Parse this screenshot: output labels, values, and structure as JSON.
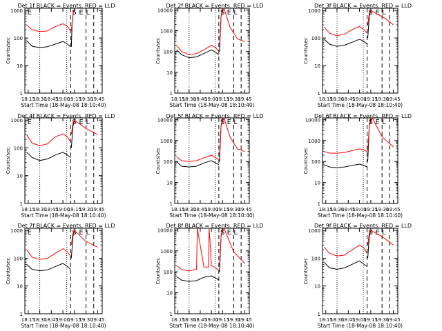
{
  "chart_data": [
    {
      "type": "line",
      "title": "Det 1f BLACK = Events, RED = LLD",
      "xlabel": "Start Time (18-May-08 18:10:40)",
      "ylabel": "Counts/sec",
      "ylim": [
        1,
        1200
      ],
      "xlim": [
        "18:10:40",
        "19:51"
      ],
      "y_scale": "log",
      "x_ticks": [
        "18:15",
        "18:30",
        "18:45",
        "19:00",
        "19:15",
        "19:30",
        "19:45"
      ],
      "y_ticks": [
        "1",
        "10",
        "100",
        "1000"
      ],
      "flags": [
        "E",
        "S",
        "E",
        "L"
      ],
      "series": [
        {
          "color": "#000000",
          "x": [
            "18:13",
            "18:20",
            "18:30",
            "18:40",
            "18:50",
            "19:00",
            "19:06",
            "19:10"
          ],
          "values": [
            80,
            50,
            45,
            48,
            60,
            75,
            60,
            48
          ]
        },
        {
          "color": "#ff0000",
          "x": [
            "18:13",
            "18:20",
            "18:30",
            "18:40",
            "18:50",
            "19:00",
            "19:06",
            "19:10"
          ],
          "values": [
            300,
            200,
            170,
            180,
            260,
            330,
            260,
            180
          ]
        }
      ],
      "post_series": [
        {
          "color": "#000000",
          "x": [
            "19:11",
            "19:12",
            "19:14",
            "19:15"
          ],
          "values": [
            48,
            400,
            1000,
            1000
          ]
        },
        {
          "color": "#ff0000",
          "x": [
            "19:11",
            "19:12",
            "19:14",
            "19:15"
          ],
          "values": [
            180,
            400,
            1000,
            1000
          ]
        }
      ]
    },
    {
      "type": "line",
      "title": "Det 2f BLACK = Events, RED = LLD",
      "xlabel": "Start Time (18-May-08 18:10:40)",
      "ylabel": "Counts/sec",
      "ylim": [
        1,
        12000
      ],
      "xlim": [
        "18:10:40",
        "19:51"
      ],
      "y_scale": "log",
      "x_ticks": [
        "18:15",
        "18:30",
        "18:45",
        "19:00",
        "19:15",
        "19:30",
        "19:45"
      ],
      "y_ticks": [
        "1",
        "10",
        "100",
        "1000",
        "10000"
      ],
      "flags": [
        "S",
        "E",
        "L"
      ],
      "series": [
        {
          "color": "#000000",
          "x": [
            "18:13",
            "18:20",
            "18:30",
            "18:40",
            "18:50",
            "19:00",
            "19:06",
            "19:10"
          ],
          "values": [
            120,
            70,
            50,
            55,
            80,
            120,
            90,
            70
          ]
        },
        {
          "color": "#ff0000",
          "x": [
            "18:13",
            "18:20",
            "18:30",
            "18:40",
            "18:50",
            "19:00",
            "19:06",
            "19:10"
          ],
          "values": [
            200,
            100,
            70,
            80,
            120,
            200,
            150,
            100
          ]
        }
      ],
      "post_series": [
        {
          "color": "#000000",
          "x": [
            "19:11",
            "19:13",
            "19:15"
          ],
          "values": [
            100,
            5000,
            10000
          ]
        },
        {
          "color": "#ff0000",
          "x": [
            "19:11",
            "19:13",
            "19:17",
            "19:25",
            "19:35",
            "19:45"
          ],
          "values": [
            200,
            5000,
            12000,
            1500,
            400,
            300
          ]
        }
      ]
    },
    {
      "type": "line",
      "title": "Det 3f BLACK = Events, RED = LLD",
      "xlabel": "Start Time (18-May-08 18:10:40)",
      "ylabel": "Counts/sec",
      "ylim": [
        1,
        1200
      ],
      "xlim": [
        "18:10:40",
        "19:51"
      ],
      "y_scale": "log",
      "x_ticks": [
        "18:15",
        "18:30",
        "18:45",
        "19:00",
        "19:15",
        "19:30",
        "19:45"
      ],
      "y_ticks": [
        "1",
        "10",
        "100",
        "1000"
      ],
      "flags": [
        "S",
        "E",
        "L"
      ],
      "series": [
        {
          "color": "#000000",
          "x": [
            "18:13",
            "18:20",
            "18:30",
            "18:40",
            "18:50",
            "19:00",
            "19:06",
            "19:10"
          ],
          "values": [
            90,
            60,
            50,
            55,
            70,
            90,
            75,
            60
          ]
        },
        {
          "color": "#ff0000",
          "x": [
            "18:13",
            "18:20",
            "18:30",
            "18:40",
            "18:50",
            "19:00",
            "19:06",
            "19:10"
          ],
          "values": [
            250,
            150,
            120,
            140,
            200,
            260,
            200,
            150
          ]
        }
      ],
      "post_series": [
        {
          "color": "#000000",
          "x": [
            "19:11",
            "19:13",
            "19:15"
          ],
          "values": [
            100,
            600,
            1000
          ]
        },
        {
          "color": "#ff0000",
          "x": [
            "19:11",
            "19:13",
            "19:15",
            "19:25",
            "19:35",
            "19:45"
          ],
          "values": [
            300,
            800,
            1000,
            700,
            500,
            300
          ]
        }
      ]
    },
    {
      "type": "line",
      "title": "Det 4f BLACK = Events, RED = LLD",
      "xlabel": "Start Time (18-May-08 18:10:40)",
      "ylabel": "Counts/sec",
      "ylim": [
        1,
        1200
      ],
      "xlim": [
        "18:10:40",
        "19:51"
      ],
      "y_scale": "log",
      "x_ticks": [
        "18:15",
        "18:30",
        "18:45",
        "19:00",
        "19:15",
        "19:30",
        "19:45"
      ],
      "y_ticks": [
        "1",
        "10",
        "100",
        "1000"
      ],
      "flags": [
        "E",
        "S",
        "E",
        "L"
      ],
      "series": [
        {
          "color": "#000000",
          "x": [
            "18:13",
            "18:20",
            "18:30",
            "18:40",
            "18:50",
            "19:00",
            "19:06",
            "19:10"
          ],
          "values": [
            70,
            45,
            35,
            40,
            55,
            70,
            55,
            45
          ]
        },
        {
          "color": "#ff0000",
          "x": [
            "18:13",
            "18:20",
            "18:30",
            "18:40",
            "18:50",
            "19:00",
            "19:06",
            "19:10"
          ],
          "values": [
            300,
            150,
            120,
            140,
            250,
            320,
            250,
            160
          ]
        }
      ],
      "post_series": [
        {
          "color": "#000000",
          "x": [
            "19:11",
            "19:13",
            "19:15"
          ],
          "values": [
            100,
            600,
            1000
          ]
        },
        {
          "color": "#ff0000",
          "x": [
            "19:11",
            "19:13",
            "19:15",
            "19:30",
            "19:45"
          ],
          "values": [
            300,
            800,
            1000,
            500,
            300
          ]
        }
      ]
    },
    {
      "type": "line",
      "title": "Det 5f BLACK = Events, RED = LLD",
      "xlabel": "Start Time (18-May-08 18:10:40)",
      "ylabel": "Counts/sec",
      "ylim": [
        1,
        12000
      ],
      "xlim": [
        "18:10:40",
        "19:51"
      ],
      "y_scale": "log",
      "x_ticks": [
        "18:15",
        "18:30",
        "18:45",
        "19:00",
        "19:15",
        "19:30",
        "19:45"
      ],
      "y_ticks": [
        "1",
        "10",
        "100",
        "1000",
        "10000"
      ],
      "flags": [
        "S",
        "E",
        "L"
      ],
      "series": [
        {
          "color": "#000000",
          "x": [
            "18:13",
            "18:20",
            "18:30",
            "18:40",
            "18:50",
            "19:00",
            "19:06",
            "19:10"
          ],
          "values": [
            100,
            60,
            55,
            60,
            85,
            110,
            85,
            70
          ]
        },
        {
          "color": "#ff0000",
          "x": [
            "18:13",
            "18:20",
            "18:30",
            "18:40",
            "18:50",
            "19:00",
            "19:06",
            "19:10"
          ],
          "values": [
            170,
            110,
            100,
            110,
            150,
            200,
            150,
            120
          ]
        }
      ],
      "post_series": [
        {
          "color": "#000000",
          "x": [
            "19:11",
            "19:13",
            "19:15"
          ],
          "values": [
            100,
            5000,
            10000
          ]
        },
        {
          "color": "#ff0000",
          "x": [
            "19:11",
            "19:13",
            "19:17",
            "19:25",
            "19:35",
            "19:45"
          ],
          "values": [
            200,
            5000,
            12000,
            1500,
            400,
            300
          ]
        }
      ]
    },
    {
      "type": "line",
      "title": "Det 6f BLACK = Events, RED = LLD",
      "xlabel": "Start Time (18-May-08 18:10:40)",
      "ylabel": "Counts/sec",
      "ylim": [
        1,
        12000
      ],
      "xlim": [
        "18:10:40",
        "19:51"
      ],
      "y_scale": "log",
      "x_ticks": [
        "18:15",
        "18:30",
        "18:45",
        "19:00",
        "19:15",
        "19:30",
        "19:45"
      ],
      "y_ticks": [
        "1",
        "10",
        "100",
        "1000",
        "10000"
      ],
      "flags": [
        "S",
        "E",
        "L"
      ],
      "series": [
        {
          "color": "#000000",
          "x": [
            "18:13",
            "18:20",
            "18:30",
            "18:40",
            "18:50",
            "19:00",
            "19:06",
            "19:10"
          ],
          "values": [
            70,
            55,
            50,
            55,
            65,
            75,
            65,
            55
          ]
        },
        {
          "color": "#ff0000",
          "x": [
            "18:13",
            "18:20",
            "18:30",
            "18:40",
            "18:50",
            "19:00",
            "19:06",
            "19:10"
          ],
          "values": [
            300,
            250,
            250,
            270,
            330,
            400,
            350,
            300
          ]
        }
      ],
      "post_series": [
        {
          "color": "#000000",
          "x": [
            "19:11",
            "19:13",
            "19:15"
          ],
          "values": [
            100,
            5000,
            10000
          ]
        },
        {
          "color": "#ff0000",
          "x": [
            "19:11",
            "19:13",
            "19:17",
            "19:30",
            "19:45"
          ],
          "values": [
            300,
            5000,
            12000,
            1500,
            500
          ]
        }
      ]
    },
    {
      "type": "line",
      "title": "Det 7f BLACK = Events, RED = LLD",
      "xlabel": "Start Time (18-May-08 18:10:40)",
      "ylabel": "Counts/sec",
      "ylim": [
        1,
        1200
      ],
      "xlim": [
        "18:10:40",
        "19:51"
      ],
      "y_scale": "log",
      "x_ticks": [
        "18:15",
        "18:30",
        "18:45",
        "19:00",
        "19:15",
        "19:30",
        "19:45"
      ],
      "y_ticks": [
        "1",
        "10",
        "100",
        "1000"
      ],
      "flags": [
        "E",
        "S",
        "E",
        "L"
      ],
      "series": [
        {
          "color": "#000000",
          "x": [
            "18:13",
            "18:20",
            "18:30",
            "18:40",
            "18:50",
            "19:00",
            "19:06",
            "19:10"
          ],
          "values": [
            60,
            40,
            35,
            38,
            50,
            65,
            50,
            40
          ]
        },
        {
          "color": "#ff0000",
          "x": [
            "18:13",
            "18:20",
            "18:30",
            "18:40",
            "18:50",
            "19:00",
            "19:06",
            "19:10"
          ],
          "values": [
            200,
            110,
            90,
            100,
            150,
            220,
            170,
            120
          ]
        }
      ],
      "post_series": [
        {
          "color": "#000000",
          "x": [
            "19:11",
            "19:13",
            "19:15"
          ],
          "values": [
            100,
            600,
            1000
          ]
        },
        {
          "color": "#ff0000",
          "x": [
            "19:11",
            "19:13",
            "19:15",
            "19:30",
            "19:45"
          ],
          "values": [
            300,
            800,
            1000,
            400,
            250
          ]
        }
      ]
    },
    {
      "type": "line",
      "title": "Det 8f BLACK = Events, RED = LLD",
      "xlabel": "Start Time (18-May-08 18:10:40)",
      "ylabel": "Counts/sec",
      "ylim": [
        1,
        12000
      ],
      "xlim": [
        "18:10:40",
        "19:51"
      ],
      "y_scale": "log",
      "x_ticks": [
        "18:15",
        "18:30",
        "18:45",
        "19:00",
        "19:15",
        "19:30",
        "19:45"
      ],
      "y_ticks": [
        "1",
        "10",
        "100",
        "1000",
        "10000"
      ],
      "flags": [
        "S",
        "E",
        "L"
      ],
      "series": [
        {
          "color": "#000000",
          "x": [
            "18:13",
            "18:20",
            "18:30",
            "18:40",
            "18:50",
            "18:55",
            "18:56",
            "19:00",
            "19:06",
            "19:10"
          ],
          "values": [
            60,
            40,
            35,
            38,
            55,
            60,
            60,
            65,
            50,
            40
          ]
        },
        {
          "color": "#ff0000",
          "x": [
            "18:13",
            "18:20",
            "18:30",
            "18:38",
            "18:40",
            "18:41",
            "18:50",
            "18:56",
            "18:57",
            "19:00",
            "19:06",
            "19:10"
          ],
          "values": [
            200,
            130,
            110,
            130,
            130,
            12000,
            170,
            170,
            12000,
            200,
            150,
            120
          ]
        }
      ],
      "post_series": [
        {
          "color": "#000000",
          "x": [
            "19:11",
            "19:13",
            "19:15"
          ],
          "values": [
            100,
            5000,
            10000
          ]
        },
        {
          "color": "#ff0000",
          "x": [
            "19:11",
            "19:13",
            "19:17",
            "19:30",
            "19:45"
          ],
          "values": [
            200,
            5000,
            12000,
            900,
            250
          ]
        }
      ]
    },
    {
      "type": "line",
      "title": "Det 9f BLACK = Events, RED = LLD",
      "xlabel": "Start Time (18-May-08 18:10:40)",
      "ylabel": "Counts/sec",
      "ylim": [
        1,
        1200
      ],
      "xlim": [
        "18:10:40",
        "19:51"
      ],
      "y_scale": "log",
      "x_ticks": [
        "18:15",
        "18:30",
        "18:45",
        "19:00",
        "19:15",
        "19:30",
        "19:45"
      ],
      "y_ticks": [
        "1",
        "10",
        "100",
        "1000"
      ],
      "flags": [
        "S",
        "E",
        "L"
      ],
      "series": [
        {
          "color": "#000000",
          "x": [
            "18:13",
            "18:20",
            "18:30",
            "18:40",
            "18:50",
            "19:00",
            "19:06",
            "19:10"
          ],
          "values": [
            70,
            45,
            40,
            45,
            60,
            80,
            60,
            50
          ]
        },
        {
          "color": "#ff0000",
          "x": [
            "18:13",
            "18:20",
            "18:30",
            "18:40",
            "18:50",
            "19:00",
            "19:06",
            "19:10"
          ],
          "values": [
            250,
            150,
            120,
            130,
            200,
            300,
            230,
            150
          ]
        }
      ],
      "post_series": [
        {
          "color": "#000000",
          "x": [
            "19:11",
            "19:13",
            "19:15"
          ],
          "values": [
            100,
            600,
            1000
          ]
        },
        {
          "color": "#ff0000",
          "x": [
            "19:11",
            "19:13",
            "19:15",
            "19:30",
            "19:45"
          ],
          "values": [
            300,
            800,
            1000,
            600,
            300
          ]
        }
      ]
    }
  ]
}
